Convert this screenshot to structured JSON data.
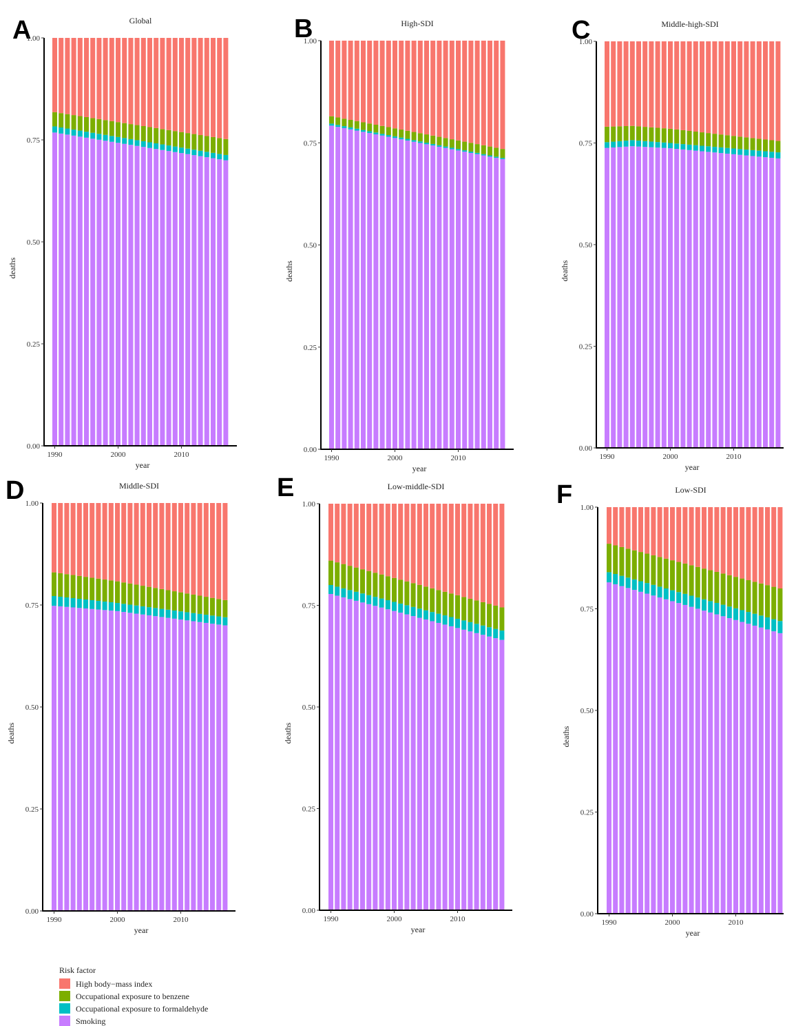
{
  "figure": {
    "legend": {
      "title": "Risk factor",
      "items": [
        {
          "label": "High body−mass index",
          "color": "#F8766D"
        },
        {
          "label": "Occupational exposure to benzene",
          "color": "#7CAE00"
        },
        {
          "label": "Occupational exposure to formaldehyde",
          "color": "#00BFC4"
        },
        {
          "label": "Smoking",
          "color": "#C77CFF"
        }
      ]
    }
  },
  "chart_data": [
    {
      "type": "bar",
      "stacked": true,
      "panel": "A",
      "title": "Global",
      "xlabel": "year",
      "ylabel": "deaths",
      "ylim": [
        0,
        1
      ],
      "x_ticks": [
        1990,
        2000,
        2010
      ],
      "y_ticks": [
        "0.00",
        "0.25",
        "0.50",
        "0.75",
        "1.00"
      ],
      "x_range": [
        1990,
        2017
      ],
      "cumulative_boundaries": {
        "smoking_top": [
          [
            1990,
            0.768
          ],
          [
            2017,
            0.7
          ]
        ],
        "formaldehyde_top": [
          [
            1990,
            0.783
          ],
          [
            2017,
            0.713
          ]
        ],
        "benzene_top": [
          [
            1990,
            0.818
          ],
          [
            2017,
            0.752
          ]
        ]
      }
    },
    {
      "type": "bar",
      "stacked": true,
      "panel": "B",
      "title": "High-SDI",
      "xlabel": "year",
      "ylabel": "deaths",
      "ylim": [
        0,
        1
      ],
      "x_ticks": [
        1990,
        2000,
        2010
      ],
      "y_ticks": [
        "0.00",
        "0.25",
        "0.50",
        "0.75",
        "1.00"
      ],
      "x_range": [
        1990,
        2017
      ],
      "cumulative_boundaries": {
        "smoking_top": [
          [
            1990,
            0.792
          ],
          [
            2017,
            0.71
          ]
        ],
        "formaldehyde_top": [
          [
            1990,
            0.797
          ],
          [
            2017,
            0.713
          ]
        ],
        "benzene_top": [
          [
            1990,
            0.815
          ],
          [
            2017,
            0.735
          ]
        ]
      }
    },
    {
      "type": "bar",
      "stacked": true,
      "panel": "C",
      "title": "Middle-high-SDI",
      "xlabel": "year",
      "ylabel": "deaths",
      "ylim": [
        0,
        1
      ],
      "x_ticks": [
        1990,
        2000,
        2010
      ],
      "y_ticks": [
        "0.00",
        "0.25",
        "0.50",
        "0.75",
        "1.00"
      ],
      "x_range": [
        1990,
        2017
      ],
      "cumulative_boundaries": {
        "smoking_top": [
          [
            1990,
            0.738
          ],
          [
            1994,
            0.742
          ],
          [
            2000,
            0.737
          ],
          [
            2017,
            0.712
          ]
        ],
        "formaldehyde_top": [
          [
            1990,
            0.752
          ],
          [
            1994,
            0.757
          ],
          [
            2000,
            0.75
          ],
          [
            2017,
            0.727
          ]
        ],
        "benzene_top": [
          [
            1990,
            0.79
          ],
          [
            1994,
            0.792
          ],
          [
            2000,
            0.785
          ],
          [
            2017,
            0.755
          ]
        ]
      }
    },
    {
      "type": "bar",
      "stacked": true,
      "panel": "D",
      "title": "Middle-SDI",
      "xlabel": "year",
      "ylabel": "deaths",
      "ylim": [
        0,
        1
      ],
      "x_ticks": [
        1990,
        2000,
        2010
      ],
      "y_ticks": [
        "0.00",
        "0.25",
        "0.50",
        "0.75",
        "1.00"
      ],
      "x_range": [
        1990,
        2017
      ],
      "cumulative_boundaries": {
        "smoking_top": [
          [
            1990,
            0.748
          ],
          [
            2000,
            0.735
          ],
          [
            2017,
            0.7
          ]
        ],
        "formaldehyde_top": [
          [
            1990,
            0.772
          ],
          [
            2000,
            0.755
          ],
          [
            2017,
            0.72
          ]
        ],
        "benzene_top": [
          [
            1990,
            0.83
          ],
          [
            2000,
            0.808
          ],
          [
            2017,
            0.762
          ]
        ]
      }
    },
    {
      "type": "bar",
      "stacked": true,
      "panel": "E",
      "title": "Low-middle-SDI",
      "xlabel": "year",
      "ylabel": "deaths",
      "ylim": [
        0,
        1
      ],
      "x_ticks": [
        1990,
        2000,
        2010
      ],
      "y_ticks": [
        "0.00",
        "0.25",
        "0.50",
        "0.75",
        "1.00"
      ],
      "x_range": [
        1990,
        2017
      ],
      "cumulative_boundaries": {
        "smoking_top": [
          [
            1990,
            0.778
          ],
          [
            2017,
            0.665
          ]
        ],
        "formaldehyde_top": [
          [
            1990,
            0.8
          ],
          [
            2017,
            0.688
          ]
        ],
        "benzene_top": [
          [
            1990,
            0.86
          ],
          [
            2017,
            0.745
          ]
        ]
      }
    },
    {
      "type": "bar",
      "stacked": true,
      "panel": "F",
      "title": "Low-SDI",
      "xlabel": "year",
      "ylabel": "deaths",
      "ylim": [
        0,
        1
      ],
      "x_ticks": [
        1990,
        2000,
        2010
      ],
      "y_ticks": [
        "0.00",
        "0.25",
        "0.50",
        "0.75",
        "1.00"
      ],
      "x_range": [
        1990,
        2017
      ],
      "cumulative_boundaries": {
        "smoking_top": [
          [
            1990,
            0.815
          ],
          [
            2017,
            0.69
          ]
        ],
        "formaldehyde_top": [
          [
            1990,
            0.84
          ],
          [
            2017,
            0.72
          ]
        ],
        "benzene_top": [
          [
            1990,
            0.91
          ],
          [
            2017,
            0.8
          ]
        ]
      }
    }
  ]
}
